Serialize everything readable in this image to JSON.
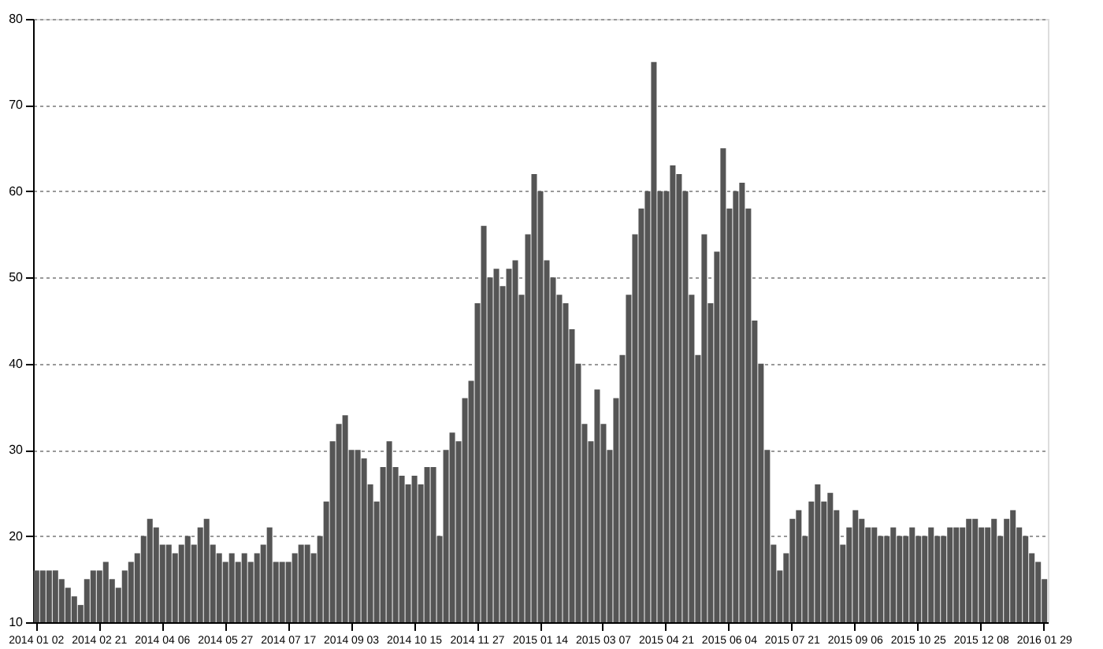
{
  "chart_data": {
    "type": "bar",
    "categories": [
      "2014 01 02",
      null,
      null,
      null,
      null,
      null,
      null,
      null,
      null,
      null,
      "2014 02 21",
      null,
      null,
      null,
      null,
      null,
      null,
      null,
      null,
      null,
      "2014 04 06",
      null,
      null,
      null,
      null,
      null,
      null,
      null,
      null,
      null,
      "2014 05 27",
      null,
      null,
      null,
      null,
      null,
      null,
      null,
      null,
      null,
      "2014 07 17",
      null,
      null,
      null,
      null,
      null,
      null,
      null,
      null,
      null,
      "2014 09 03",
      null,
      null,
      null,
      null,
      null,
      null,
      null,
      null,
      null,
      "2014 10 15",
      null,
      null,
      null,
      null,
      null,
      null,
      null,
      null,
      null,
      "2014 11 27",
      null,
      null,
      null,
      null,
      null,
      null,
      null,
      null,
      null,
      "2015 01 14",
      null,
      null,
      null,
      null,
      null,
      null,
      null,
      null,
      null,
      "2015 03 07",
      null,
      null,
      null,
      null,
      null,
      null,
      null,
      null,
      null,
      "2015 04 21",
      null,
      null,
      null,
      null,
      null,
      null,
      null,
      null,
      null,
      "2015 06 04",
      null,
      null,
      null,
      null,
      null,
      null,
      null,
      null,
      null,
      "2015 07 21",
      null,
      null,
      null,
      null,
      null,
      null,
      null,
      null,
      null,
      "2015 09 06",
      null,
      null,
      null,
      null,
      null,
      null,
      null,
      null,
      null,
      "2015 10 25",
      null,
      null,
      null,
      null,
      null,
      null,
      null,
      null,
      null,
      "2015 12 08",
      null,
      null,
      null,
      null,
      null,
      null,
      null,
      null,
      null,
      "2016 01 29"
    ],
    "values": [
      16,
      16,
      16,
      16,
      15,
      14,
      13,
      12,
      15,
      16,
      16,
      17,
      15,
      14,
      16,
      17,
      18,
      20,
      22,
      21,
      19,
      19,
      18,
      19,
      20,
      19,
      21,
      22,
      19,
      18,
      17,
      18,
      17,
      18,
      17,
      18,
      19,
      21,
      17,
      17,
      17,
      18,
      19,
      19,
      18,
      20,
      24,
      31,
      33,
      34,
      30,
      30,
      29,
      26,
      24,
      28,
      31,
      28,
      27,
      26,
      27,
      26,
      28,
      28,
      20,
      30,
      32,
      31,
      36,
      38,
      47,
      56,
      50,
      51,
      49,
      51,
      52,
      48,
      55,
      62,
      60,
      52,
      50,
      48,
      47,
      44,
      40,
      33,
      31,
      37,
      33,
      30,
      36,
      41,
      48,
      55,
      58,
      60,
      75,
      60,
      60,
      63,
      62,
      60,
      48,
      41,
      55,
      47,
      53,
      65,
      58,
      60,
      61,
      58,
      45,
      40,
      30,
      19,
      16,
      18,
      22,
      23,
      20,
      24,
      26,
      24,
      25,
      23,
      19,
      21,
      23,
      22,
      21,
      21,
      20,
      20,
      21,
      20,
      20,
      21,
      20,
      20,
      21,
      20,
      20,
      21,
      21,
      21,
      22,
      22,
      21,
      21,
      22,
      20,
      22,
      23,
      21,
      20,
      18,
      17,
      15
    ],
    "color": "#555555",
    "ylim": [
      10,
      80
    ],
    "yticks": [
      10,
      20,
      30,
      40,
      50,
      60,
      70,
      80
    ],
    "grid": "y"
  }
}
